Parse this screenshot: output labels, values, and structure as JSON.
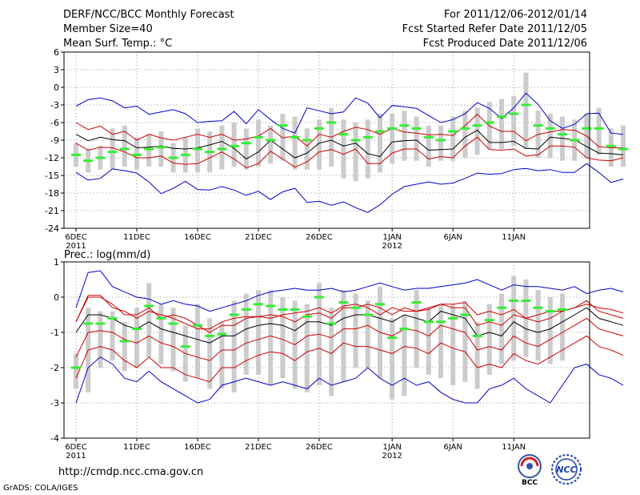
{
  "header": {
    "title": "DERF/NCC/BCC Monthly Forecast",
    "member": "Member Size=40",
    "variable": "Mean Surf. Temp.: °C",
    "for_range": "For 2011/12/06-2012/01/14",
    "started": "Fcst Started Refer Date 2011/12/05",
    "produced": "Fcst Produced Date 2011/12/06"
  },
  "footer": {
    "url": "http://cmdp.ncc.cma.gov.cn",
    "credit": "GrADS: COLA/IGES"
  },
  "logos": {
    "bcc": "BCC",
    "ncc": "NCC"
  },
  "colors": {
    "max_min": "#0000cc",
    "spread": "#cc0000",
    "mean": "#000000",
    "observed": "#33ee33",
    "box": "#cccccc"
  },
  "chart_data": [
    {
      "type": "line",
      "title": "Mean Surf. Temp.: °C",
      "ylim": [
        -24,
        6
      ],
      "yticks": [
        6,
        3,
        0,
        -3,
        -6,
        -9,
        -12,
        -15,
        -18,
        -21,
        -24
      ],
      "xlabels": [
        "6DEC",
        "11DEC",
        "16DEC",
        "21DEC",
        "26DEC",
        "1JAN",
        "6JAN",
        "11JAN"
      ],
      "xlabel_days": [
        0,
        5,
        10,
        15,
        20,
        26,
        31,
        36
      ],
      "year_labels": [
        {
          "day": 0,
          "text": "2011"
        },
        {
          "day": 26,
          "text": "2012"
        }
      ],
      "days": 40,
      "series": [
        {
          "name": "max",
          "values": [
            -3.2,
            -2.1,
            -1.8,
            -2.3,
            -3.5,
            -3.2,
            -4.6,
            -4.2,
            -3.8,
            -4.5,
            -6.0,
            -5.8,
            -5.7,
            -4.1,
            -6.2,
            -3.8,
            -5.5,
            -7.0,
            -7.8,
            -3.5,
            -4.0,
            -4.5,
            -4.2,
            -1.8,
            -2.7,
            -5.2,
            -3.1,
            -3.3,
            -3.6,
            -4.8,
            -6.0,
            -5.5,
            -4.5,
            -2.6,
            -3.6,
            -5.3,
            -3.5,
            -1.0,
            -2.9,
            -5.7,
            -7.0,
            -6.3,
            -4.5,
            -4.4,
            -7.8,
            -8.0
          ]
        },
        {
          "name": "upper",
          "values": [
            -6.0,
            -7.2,
            -6.6,
            -8.0,
            -7.5,
            -9.0,
            -8.0,
            -8.6,
            -9.0,
            -8.5,
            -8.0,
            -8.5,
            -8.0,
            -9.0,
            -8.8,
            -8.3,
            -7.0,
            -8.6,
            -8.3,
            -10.0,
            -8.0,
            -8.5,
            -7.5,
            -6.8,
            -7.2,
            -8.0,
            -7.0,
            -7.6,
            -7.8,
            -8.1,
            -8.0,
            -8.2,
            -6.5,
            -4.6,
            -6.6,
            -7.5,
            -7.5,
            -9.1,
            -8.0,
            -7.6,
            -7.2,
            -7.3,
            -8.3,
            -10.1,
            -10.3,
            -10.3
          ]
        },
        {
          "name": "mean",
          "values": [
            -8.0,
            -9.1,
            -8.5,
            -8.9,
            -9.1,
            -10.3,
            -10.2,
            -10.0,
            -10.4,
            -10.5,
            -10.3,
            -9.8,
            -9.2,
            -10.4,
            -12.2,
            -11.0,
            -9.0,
            -10.5,
            -12.0,
            -11.2,
            -9.5,
            -9.0,
            -10.0,
            -9.5,
            -11.3,
            -11.8,
            -9.3,
            -9.1,
            -9.0,
            -10.7,
            -10.6,
            -10.5,
            -8.5,
            -7.3,
            -9.4,
            -9.4,
            -9.2,
            -10.4,
            -10.5,
            -8.5,
            -8.7,
            -8.9,
            -10.1,
            -11.2,
            -11.3,
            -11.5
          ]
        },
        {
          "name": "lower",
          "values": [
            -9.5,
            -10.7,
            -10.2,
            -10.3,
            -11.0,
            -12.0,
            -12.0,
            -11.7,
            -12.9,
            -13.1,
            -13.0,
            -12.0,
            -11.0,
            -12.2,
            -13.7,
            -13.0,
            -10.9,
            -12.2,
            -13.6,
            -12.7,
            -11.0,
            -10.6,
            -11.4,
            -10.5,
            -13.0,
            -13.0,
            -11.2,
            -10.5,
            -10.5,
            -12.2,
            -11.8,
            -12.0,
            -10.0,
            -8.5,
            -10.6,
            -10.7,
            -10.5,
            -11.7,
            -11.5,
            -10.0,
            -10.0,
            -10.2,
            -12.0,
            -12.4,
            -12.5,
            -12.0
          ]
        },
        {
          "name": "min",
          "values": [
            -14.5,
            -15.8,
            -15.5,
            -13.9,
            -14.2,
            -14.6,
            -16.1,
            -18.1,
            -17.2,
            -16.0,
            -17.4,
            -17.5,
            -16.9,
            -17.5,
            -18.4,
            -17.7,
            -19.1,
            -17.8,
            -17.2,
            -19.6,
            -19.4,
            -20.1,
            -19.5,
            -20.5,
            -21.3,
            -20.0,
            -18.2,
            -16.9,
            -16.5,
            -16.1,
            -16.5,
            -16.3,
            -15.5,
            -14.6,
            -14.8,
            -14.7,
            -14.0,
            -13.8,
            -14.2,
            -14.0,
            -14.5,
            -14.5,
            -13.0,
            -14.5,
            -16.2,
            -15.6
          ]
        }
      ],
      "observed": [
        -11.5,
        -12.5,
        -12.0,
        -11.0,
        -10.5,
        -11.5,
        -10.5,
        -10.2,
        -12.0,
        -11.5,
        -10.5,
        -11.0,
        -10.5,
        -10.0,
        -9.5,
        -8.5,
        -9.0,
        -6.5,
        -8.5,
        -9.0,
        -7.0,
        -6.0,
        -8.0,
        -9.0,
        -8.5,
        -7.5,
        -7.0,
        -6.5,
        -7.0,
        -8.5,
        -9.0,
        -7.5,
        -7.0,
        -6.5,
        -6.0,
        -5.0,
        -4.5,
        -3.0,
        -6.5,
        -7.0,
        -8.0,
        -9.0,
        -7.0,
        -7.0,
        -10.0,
        -10.5
      ],
      "box_high": [
        -9.5,
        -10.5,
        -10.0,
        -7.0,
        -6.5,
        -8.5,
        -8.0,
        -7.5,
        -9.5,
        -8.5,
        -7.0,
        -7.5,
        -6.5,
        -6.0,
        -7.0,
        -5.5,
        -6.5,
        -4.5,
        -5.0,
        -7.0,
        -5.5,
        -3.5,
        -5.5,
        -6.0,
        -5.5,
        -4.5,
        -4.5,
        -4.0,
        -5.0,
        -6.5,
        -6.5,
        -5.0,
        -4.0,
        -3.5,
        -2.5,
        -2.0,
        -1.5,
        2.5,
        -4.0,
        -4.5,
        -5.0,
        -5.5,
        -4.5,
        -3.5,
        -7.0,
        -6.5
      ],
      "box_low": [
        -13.5,
        -14.5,
        -14.0,
        -14.0,
        -13.5,
        -14.0,
        -13.5,
        -13.5,
        -14.5,
        -14.5,
        -14.5,
        -14.5,
        -14.0,
        -13.5,
        -14.0,
        -13.5,
        -13.0,
        -12.5,
        -14.0,
        -14.0,
        -14.0,
        -13.5,
        -15.5,
        -16.0,
        -15.5,
        -14.5,
        -13.0,
        -12.5,
        -12.5,
        -13.5,
        -12.5,
        -12.5,
        -12.0,
        -11.5,
        -10.5,
        -10.5,
        -10.0,
        -10.5,
        -12.0,
        -12.0,
        -12.5,
        -12.5,
        -12.0,
        -11.5,
        -13.5,
        -13.5
      ]
    },
    {
      "type": "line",
      "title": "Prec.: log(mm/d)",
      "ylim": [
        -4,
        1
      ],
      "yticks": [
        1,
        0,
        -1,
        -2,
        -3,
        -4
      ],
      "xlabels": [
        "6DEC",
        "11DEC",
        "16DEC",
        "21DEC",
        "26DEC",
        "1JAN",
        "6JAN",
        "11JAN"
      ],
      "xlabel_days": [
        0,
        5,
        10,
        15,
        20,
        26,
        31,
        36
      ],
      "year_labels": [
        {
          "day": 0,
          "text": "2011"
        },
        {
          "day": 26,
          "text": "2012"
        }
      ],
      "days": 40,
      "series": [
        {
          "name": "max",
          "values": [
            -0.3,
            0.7,
            0.75,
            0.3,
            0.15,
            0.0,
            -0.05,
            -0.2,
            -0.1,
            -0.2,
            -0.25,
            -0.4,
            -0.3,
            -0.2,
            -0.1,
            0.05,
            0.15,
            0.2,
            0.25,
            0.2,
            0.2,
            0.25,
            0.15,
            0.2,
            0.3,
            0.4,
            0.3,
            0.2,
            0.25,
            0.25,
            0.3,
            0.35,
            0.4,
            0.5,
            0.35,
            0.2,
            0.35,
            0.3,
            0.3,
            0.25,
            0.2,
            0.3,
            0.1,
            0.2,
            0.25,
            0.15
          ]
        },
        {
          "name": "upper",
          "values": [
            -0.7,
            0.0,
            0.0,
            -0.2,
            -0.5,
            -0.5,
            -0.3,
            -0.6,
            -0.5,
            -0.6,
            -0.8,
            -1.0,
            -0.8,
            -0.8,
            -0.6,
            -0.55,
            -0.5,
            -0.55,
            -0.7,
            -0.5,
            -0.45,
            -0.6,
            -0.3,
            -0.3,
            -0.2,
            -0.3,
            -0.5,
            -0.3,
            -0.4,
            -0.3,
            -0.2,
            -0.3,
            -0.3,
            -0.8,
            -0.7,
            -0.8,
            -0.5,
            -0.6,
            -0.7,
            -0.6,
            -0.4,
            -0.3,
            -0.1,
            -0.4,
            -0.5,
            -0.6
          ]
        },
        {
          "name": "mean",
          "values": [
            -1.0,
            -0.5,
            -0.5,
            -0.6,
            -0.8,
            -0.9,
            -0.7,
            -0.9,
            -1.0,
            -1.1,
            -1.2,
            -1.3,
            -1.1,
            -1.1,
            -0.9,
            -0.8,
            -0.75,
            -0.8,
            -0.95,
            -0.7,
            -0.7,
            -0.8,
            -0.6,
            -0.5,
            -0.5,
            -0.6,
            -0.7,
            -0.5,
            -0.6,
            -0.7,
            -0.4,
            -0.5,
            -0.6,
            -1.1,
            -1.0,
            -1.1,
            -0.7,
            -0.9,
            -1.0,
            -0.9,
            -0.7,
            -0.5,
            -0.3,
            -0.6,
            -0.7,
            -0.8
          ]
        },
        {
          "name": "lower",
          "values": [
            -1.7,
            -1.0,
            -0.95,
            -1.0,
            -1.2,
            -1.3,
            -1.1,
            -1.3,
            -1.4,
            -1.6,
            -1.7,
            -1.8,
            -1.5,
            -1.5,
            -1.3,
            -1.2,
            -1.1,
            -1.2,
            -1.35,
            -1.1,
            -1.05,
            -1.15,
            -0.9,
            -0.9,
            -0.8,
            -1.0,
            -1.1,
            -0.9,
            -0.95,
            -1.1,
            -0.8,
            -0.9,
            -1.0,
            -1.5,
            -1.4,
            -1.5,
            -1.1,
            -1.3,
            -1.4,
            -1.2,
            -1.0,
            -0.8,
            -0.6,
            -0.9,
            -1.0,
            -1.1
          ]
        },
        {
          "name": "spread_low",
          "values": [
            -2.3,
            -1.5,
            -1.4,
            -1.5,
            -1.8,
            -2.0,
            -1.7,
            -2.0,
            -2.0,
            -2.2,
            -2.3,
            -2.4,
            -2.0,
            -2.0,
            -1.8,
            -1.65,
            -1.55,
            -1.6,
            -1.8,
            -1.55,
            -1.45,
            -1.6,
            -1.3,
            -1.4,
            -1.4,
            -1.5,
            -1.6,
            -1.4,
            -1.45,
            -1.6,
            -1.3,
            -1.45,
            -1.55,
            -2.0,
            -1.9,
            -2.0,
            -1.6,
            -1.8,
            -1.9,
            -1.7,
            -1.5,
            -1.3,
            -1.1,
            -1.4,
            -1.5,
            -1.65
          ]
        },
        {
          "name": "min",
          "values": [
            -3.0,
            -2.0,
            -1.7,
            -1.9,
            -2.3,
            -2.4,
            -2.1,
            -2.4,
            -2.6,
            -2.8,
            -3.0,
            -2.9,
            -2.5,
            -2.4,
            -2.3,
            -2.4,
            -2.5,
            -2.4,
            -2.5,
            -2.6,
            -2.3,
            -2.5,
            -2.4,
            -2.3,
            -2.0,
            -2.3,
            -2.5,
            -2.3,
            -2.5,
            -2.4,
            -2.7,
            -2.9,
            -3.0,
            -3.0,
            -2.6,
            -2.5,
            -2.3,
            -2.6,
            -2.8,
            -3.0,
            -2.5,
            -2.0,
            -1.9,
            -2.2,
            -2.3,
            -2.5
          ]
        },
        {
          "name": "spread_top",
          "values": [
            -0.7,
            0.05,
            0.05,
            -0.3,
            -0.4,
            -0.6,
            -0.4,
            -0.5,
            -0.6,
            -0.75,
            -0.9,
            -0.9,
            -0.7,
            -0.6,
            -0.55,
            -0.55,
            -0.6,
            -0.5,
            -0.45,
            -0.4,
            -0.3,
            -0.45,
            -0.25,
            -0.2,
            -0.3,
            -0.5,
            -0.3,
            -0.4,
            -0.4,
            -0.35,
            -0.2,
            -0.2,
            -0.15,
            -0.5,
            -0.4,
            -0.5,
            -0.35,
            -0.6,
            -0.5,
            -0.4,
            -0.4,
            -0.3,
            -0.2,
            -0.3,
            -0.35,
            -0.45
          ]
        }
      ],
      "observed": [
        -2.0,
        -0.75,
        -0.75,
        -0.6,
        -1.25,
        -0.9,
        -0.25,
        -0.6,
        -0.75,
        -1.4,
        -0.8,
        -1.1,
        -1.05,
        -0.5,
        -0.35,
        -0.2,
        -0.25,
        -0.35,
        -0.35,
        -0.55,
        -0.0,
        -0.75,
        -0.15,
        -0.3,
        -0.5,
        -0.2,
        -1.15,
        -0.9,
        -0.15,
        -0.7,
        -0.7,
        -0.6,
        -0.5,
        -1.1,
        -0.65,
        -0.3,
        -0.1,
        -0.1,
        -0.3,
        -0.4,
        -0.35
      ],
      "box_high": [
        -1.6,
        -0.3,
        -0.4,
        -0.4,
        -0.7,
        -0.3,
        0.4,
        -0.2,
        -0.3,
        -0.8,
        -0.2,
        -0.6,
        -0.7,
        -0.1,
        0.1,
        0.2,
        0.2,
        0.0,
        -0.1,
        -0.2,
        0.4,
        -0.3,
        0.2,
        0.1,
        -0.1,
        0.3,
        -0.6,
        -0.5,
        0.2,
        -0.3,
        -0.2,
        -0.2,
        -0.1,
        -0.7,
        -0.2,
        0.1,
        0.6,
        0.5,
        0.2,
        0.0,
        0.1
      ],
      "box_low": [
        -2.6,
        -2.7,
        -2.0,
        -1.8,
        -2.1,
        -2.0,
        -1.7,
        -1.9,
        -2.1,
        -2.4,
        -2.3,
        -2.6,
        -2.6,
        -2.7,
        -2.2,
        -2.2,
        -2.5,
        -2.3,
        -2.6,
        -2.7,
        -2.5,
        -2.8,
        -2.4,
        -2.0,
        -2.0,
        -2.3,
        -2.9,
        -2.8,
        -2.0,
        -2.2,
        -2.3,
        -2.5,
        -2.4,
        -2.6,
        -2.2,
        -1.9,
        -1.8,
        -1.7,
        -1.8,
        -1.9,
        -1.8
      ]
    }
  ]
}
